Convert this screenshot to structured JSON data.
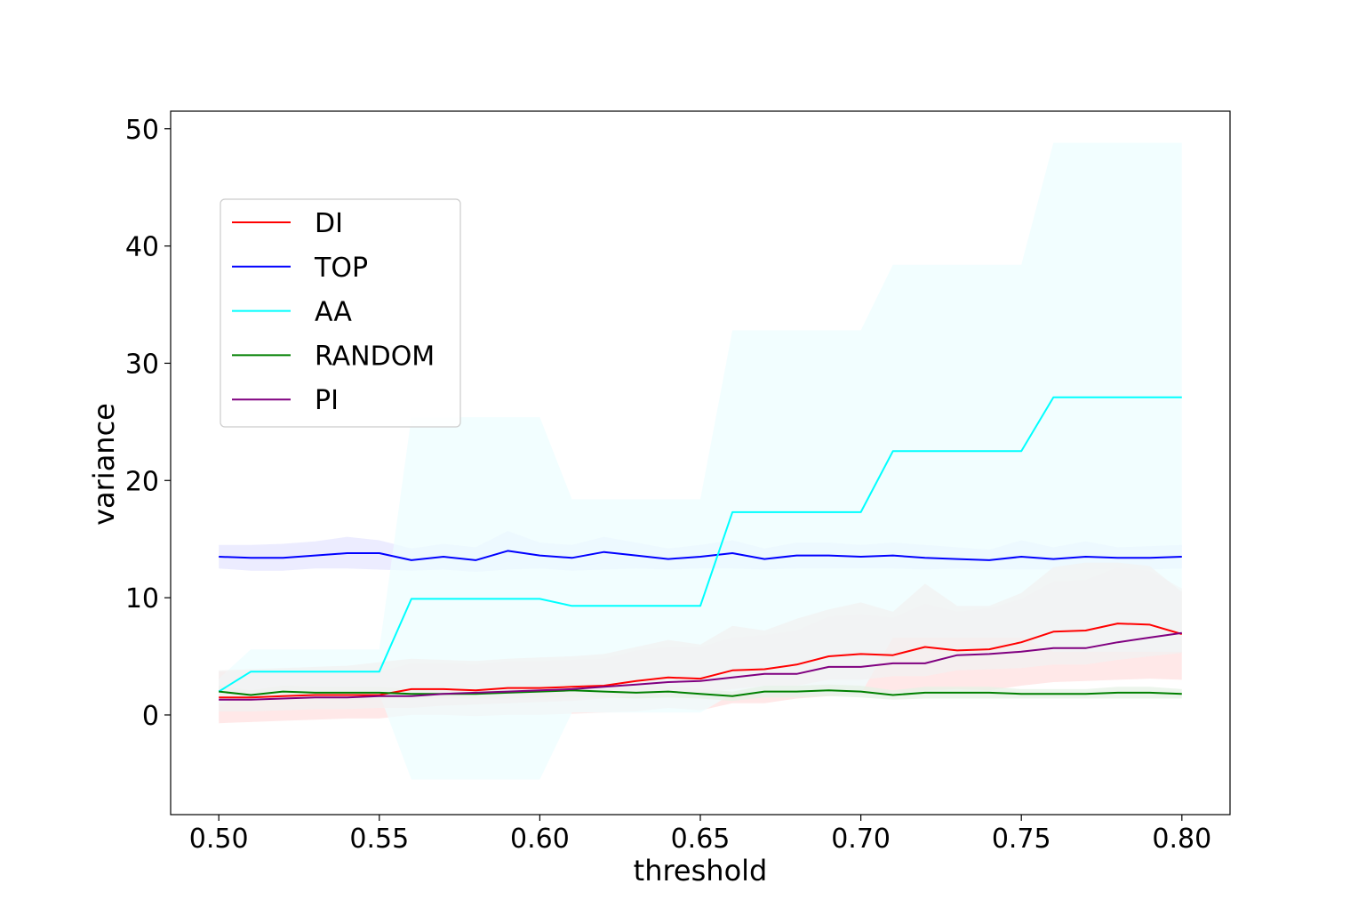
{
  "chart_data": {
    "type": "line",
    "title": "",
    "xlabel": "threshold",
    "ylabel": "variance",
    "xlim": [
      0.485,
      0.815
    ],
    "ylim": [
      -8.5,
      51.5
    ],
    "xticks": [
      0.5,
      0.55,
      0.6,
      0.65,
      0.7,
      0.75,
      0.8
    ],
    "xtick_labels": [
      "0.50",
      "0.55",
      "0.60",
      "0.65",
      "0.70",
      "0.75",
      "0.80"
    ],
    "yticks": [
      0,
      10,
      20,
      30,
      40,
      50
    ],
    "ytick_labels": [
      "0",
      "10",
      "20",
      "30",
      "40",
      "50"
    ],
    "grid": false,
    "legend_position": "upper-left",
    "x": [
      0.5,
      0.51,
      0.52,
      0.53,
      0.54,
      0.55,
      0.56,
      0.57,
      0.58,
      0.59,
      0.6,
      0.61,
      0.62,
      0.63,
      0.64,
      0.65,
      0.66,
      0.67,
      0.68,
      0.69,
      0.7,
      0.71,
      0.72,
      0.73,
      0.74,
      0.75,
      0.76,
      0.77,
      0.78,
      0.79,
      0.8
    ],
    "series": [
      {
        "name": "DI",
        "color": "#ff0000",
        "band_color": "#ffe0e0",
        "values": [
          1.5,
          1.5,
          1.6,
          1.7,
          1.7,
          1.7,
          2.2,
          2.2,
          2.1,
          2.3,
          2.3,
          2.4,
          2.5,
          2.9,
          3.2,
          3.1,
          3.8,
          3.9,
          4.3,
          5.0,
          5.2,
          5.1,
          5.8,
          5.5,
          5.6,
          6.2,
          7.1,
          7.2,
          7.8,
          7.7,
          6.9
        ],
        "lower": [
          -0.7,
          -0.6,
          -0.5,
          -0.4,
          -0.3,
          -0.3,
          0.0,
          0.0,
          -0.1,
          0.0,
          0.0,
          0.1,
          0.2,
          0.3,
          0.6,
          0.4,
          1.0,
          1.0,
          1.4,
          1.6,
          1.8,
          1.9,
          2.1,
          2.2,
          2.1,
          2.5,
          2.8,
          2.9,
          3.0,
          3.1,
          3.0
        ],
        "upper": [
          3.7,
          3.7,
          3.7,
          3.8,
          3.7,
          3.7,
          4.4,
          4.4,
          4.3,
          4.6,
          4.6,
          4.7,
          4.8,
          5.5,
          5.8,
          5.8,
          6.6,
          6.8,
          7.2,
          8.4,
          8.6,
          8.3,
          9.5,
          8.8,
          9.1,
          9.9,
          11.4,
          11.5,
          12.6,
          12.3,
          10.8
        ]
      },
      {
        "name": "TOP",
        "color": "#0000ff",
        "band_color": "#e6e6ff",
        "values": [
          13.5,
          13.4,
          13.4,
          13.6,
          13.8,
          13.8,
          13.2,
          13.5,
          13.2,
          14.0,
          13.6,
          13.4,
          13.9,
          13.6,
          13.3,
          13.5,
          13.8,
          13.3,
          13.6,
          13.6,
          13.5,
          13.6,
          13.4,
          13.3,
          13.2,
          13.5,
          13.3,
          13.5,
          13.4,
          13.4,
          13.5
        ],
        "lower": [
          12.5,
          12.3,
          12.3,
          12.5,
          12.5,
          12.4,
          12.3,
          12.4,
          12.2,
          12.4,
          12.5,
          12.3,
          12.4,
          12.5,
          12.4,
          12.5,
          12.5,
          12.4,
          12.5,
          12.5,
          12.5,
          12.5,
          12.4,
          12.5,
          12.4,
          12.4,
          12.4,
          12.4,
          12.5,
          12.4,
          12.5
        ],
        "upper": [
          14.5,
          14.5,
          14.6,
          14.8,
          15.2,
          14.9,
          14.2,
          14.6,
          14.3,
          15.7,
          14.7,
          14.5,
          15.2,
          14.7,
          14.2,
          14.5,
          14.9,
          14.2,
          14.7,
          14.7,
          14.5,
          14.7,
          14.5,
          14.3,
          14.1,
          14.9,
          14.3,
          14.8,
          14.3,
          14.4,
          14.5
        ]
      },
      {
        "name": "AA",
        "color": "#00ffff",
        "band_color": "#eefeff",
        "values": [
          2.0,
          3.7,
          3.7,
          3.7,
          3.7,
          3.7,
          9.9,
          9.9,
          9.9,
          9.9,
          9.9,
          9.3,
          9.3,
          9.3,
          9.3,
          9.3,
          17.3,
          17.3,
          17.3,
          17.3,
          17.3,
          22.5,
          22.5,
          22.5,
          22.5,
          22.5,
          27.1,
          27.1,
          27.1,
          27.1,
          27.1
        ],
        "lower": [
          0.9,
          1.8,
          1.8,
          1.8,
          1.8,
          1.8,
          -5.5,
          -5.5,
          -5.5,
          -5.5,
          -5.5,
          0.2,
          0.2,
          0.2,
          0.2,
          0.2,
          1.8,
          1.8,
          1.8,
          1.8,
          1.8,
          6.6,
          6.6,
          6.6,
          6.6,
          6.6,
          5.4,
          5.4,
          5.4,
          5.4,
          5.4
        ],
        "upper": [
          3.1,
          5.6,
          5.6,
          5.6,
          5.6,
          5.6,
          25.4,
          25.4,
          25.4,
          25.4,
          25.4,
          18.4,
          18.4,
          18.4,
          18.4,
          18.4,
          32.8,
          32.8,
          32.8,
          32.8,
          32.8,
          38.4,
          38.4,
          38.4,
          38.4,
          38.4,
          48.8,
          48.8,
          48.8,
          48.8,
          48.8
        ]
      },
      {
        "name": "RANDOM",
        "color": "#008000",
        "band_color": "#e6f2e6",
        "values": [
          2.0,
          1.7,
          2.0,
          1.9,
          1.9,
          1.9,
          1.8,
          1.8,
          1.8,
          1.9,
          2.0,
          2.1,
          2.0,
          1.9,
          2.0,
          1.8,
          1.6,
          2.0,
          2.0,
          2.1,
          2.0,
          1.7,
          1.9,
          1.9,
          1.9,
          1.8,
          1.8,
          1.8,
          1.9,
          1.9,
          1.8
        ],
        "lower": [
          1.5,
          1.3,
          1.5,
          1.4,
          1.4,
          1.4,
          1.4,
          1.4,
          1.4,
          1.4,
          1.5,
          1.5,
          1.5,
          1.4,
          1.5,
          1.4,
          1.2,
          1.5,
          1.5,
          1.6,
          1.5,
          1.3,
          1.4,
          1.4,
          1.4,
          1.4,
          1.4,
          1.4,
          1.4,
          1.4,
          1.4
        ],
        "upper": [
          2.5,
          2.1,
          2.5,
          2.4,
          2.4,
          2.4,
          2.2,
          2.2,
          2.2,
          2.4,
          2.5,
          2.7,
          2.5,
          2.4,
          2.5,
          2.2,
          2.0,
          2.5,
          2.5,
          2.6,
          2.5,
          2.1,
          2.4,
          2.4,
          2.4,
          2.2,
          2.2,
          2.2,
          2.4,
          2.4,
          2.2
        ]
      },
      {
        "name": "PI",
        "color": "#800080",
        "band_color": "#f1f1f1",
        "values": [
          1.3,
          1.3,
          1.4,
          1.5,
          1.5,
          1.6,
          1.6,
          1.8,
          1.9,
          2.0,
          2.1,
          2.2,
          2.4,
          2.6,
          2.8,
          2.9,
          3.2,
          3.5,
          3.5,
          4.1,
          4.1,
          4.4,
          4.4,
          5.1,
          5.2,
          5.4,
          5.7,
          5.7,
          6.2,
          6.6,
          7.0
        ],
        "lower": [
          0.3,
          0.3,
          0.4,
          0.5,
          0.5,
          0.6,
          0.6,
          0.8,
          0.9,
          1.0,
          1.1,
          1.2,
          1.4,
          1.6,
          1.8,
          1.9,
          2.2,
          2.5,
          2.5,
          3.0,
          3.0,
          3.3,
          3.3,
          3.8,
          3.9,
          4.0,
          4.3,
          4.3,
          4.7,
          5.0,
          5.3
        ],
        "upper": [
          3.8,
          3.9,
          4.0,
          4.1,
          4.2,
          4.5,
          4.8,
          4.7,
          4.6,
          4.8,
          4.9,
          5.0,
          5.2,
          5.8,
          6.4,
          6.0,
          7.6,
          7.2,
          8.2,
          9.0,
          9.6,
          8.8,
          11.2,
          9.3,
          9.3,
          10.4,
          12.6,
          13.0,
          13.0,
          12.7,
          10.5
        ]
      }
    ]
  }
}
